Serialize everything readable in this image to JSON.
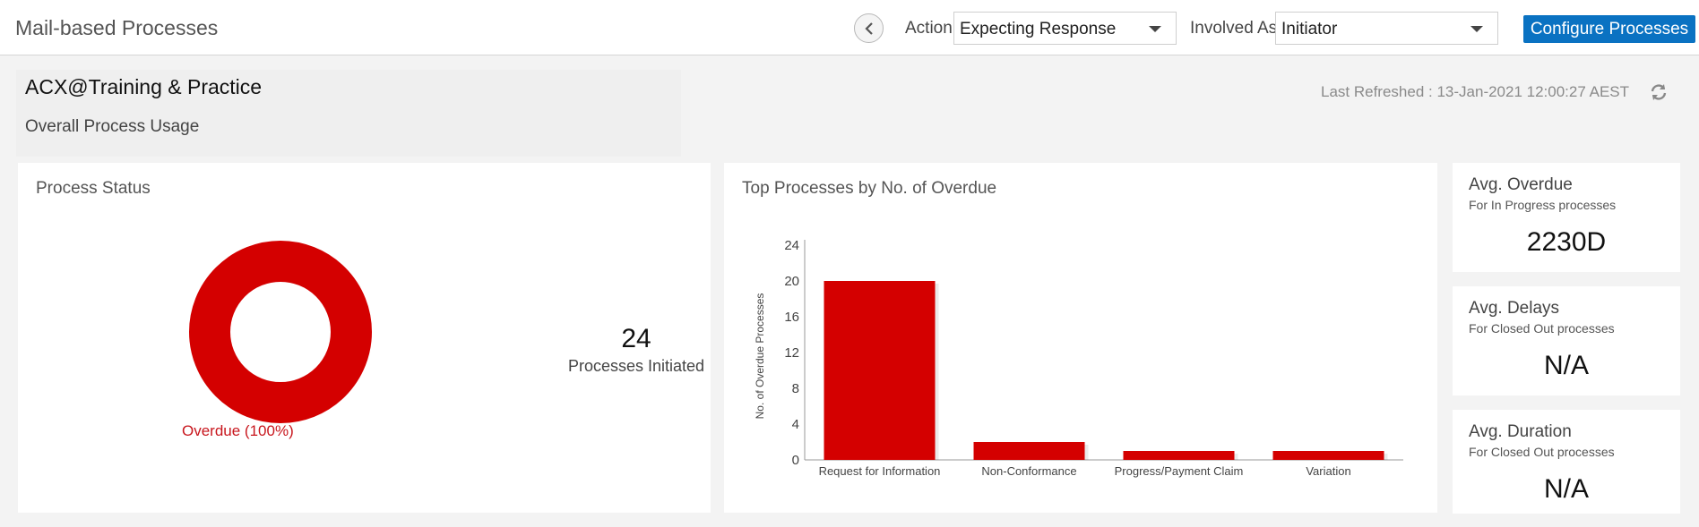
{
  "app": {
    "title": "Mail-based Processes"
  },
  "toolbar": {
    "action_label": "Action",
    "action_value": "Expecting Response",
    "involved_label": "Involved As",
    "involved_value": "Initiator",
    "configure_label": "Configure Processes"
  },
  "header": {
    "project": "ACX@Training & Practice",
    "subtitle": "Overall Process Usage",
    "last_refreshed": "Last Refreshed : 13-Jan-2021 12:00:27 AEST"
  },
  "process_status": {
    "title": "Process Status",
    "slice_label": "Overdue (100%)",
    "slice_color": "#d40000",
    "count": "24",
    "count_label": "Processes Initiated"
  },
  "overdue_chart": {
    "title": "Top Processes by No. of Overdue"
  },
  "chart_data": {
    "type": "bar",
    "categories": [
      "Request for Information",
      "Non-Conformance",
      "Progress/Payment Claim",
      "Variation"
    ],
    "values": [
      20,
      2,
      1,
      1
    ],
    "title": "Top Processes by No. of Overdue",
    "xlabel": "",
    "ylabel": "No. of Overdue Processes",
    "ylim": [
      0,
      24
    ],
    "yticks": [
      0,
      4,
      8,
      12,
      16,
      20,
      24
    ],
    "color": "#d40000",
    "grid": false
  },
  "metrics": [
    {
      "title": "Avg. Overdue",
      "subtitle": "For In Progress processes",
      "value": "2230D"
    },
    {
      "title": "Avg. Delays",
      "subtitle": "For Closed Out processes",
      "value": "N/A"
    },
    {
      "title": "Avg. Duration",
      "subtitle": "For Closed Out processes",
      "value": "N/A"
    }
  ]
}
